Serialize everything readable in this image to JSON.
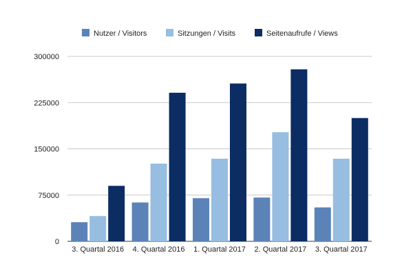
{
  "chart_data": {
    "type": "bar",
    "title": "",
    "xlabel": "",
    "ylabel": "",
    "ylim": [
      0,
      300000
    ],
    "yticks": [
      0,
      75000,
      150000,
      225000,
      300000
    ],
    "grid": true,
    "legend_position": "top",
    "categories": [
      "3. Quartal 2016",
      "4. Quartal 2016",
      "1. Quartal 2017",
      "2. Quartal 2017",
      "3. Quartal 2017"
    ],
    "series": [
      {
        "name": "Nutzer / Visitors",
        "color": "#5b83b8",
        "values": [
          31000,
          63000,
          70000,
          71000,
          55000
        ]
      },
      {
        "name": "Sitzungen / Visits",
        "color": "#97bde0",
        "values": [
          41000,
          126000,
          134000,
          177000,
          134000
        ]
      },
      {
        "name": "Seitenaufrufe / Views",
        "color": "#0b2d63",
        "values": [
          90000,
          241000,
          256000,
          279000,
          200000
        ]
      }
    ]
  }
}
